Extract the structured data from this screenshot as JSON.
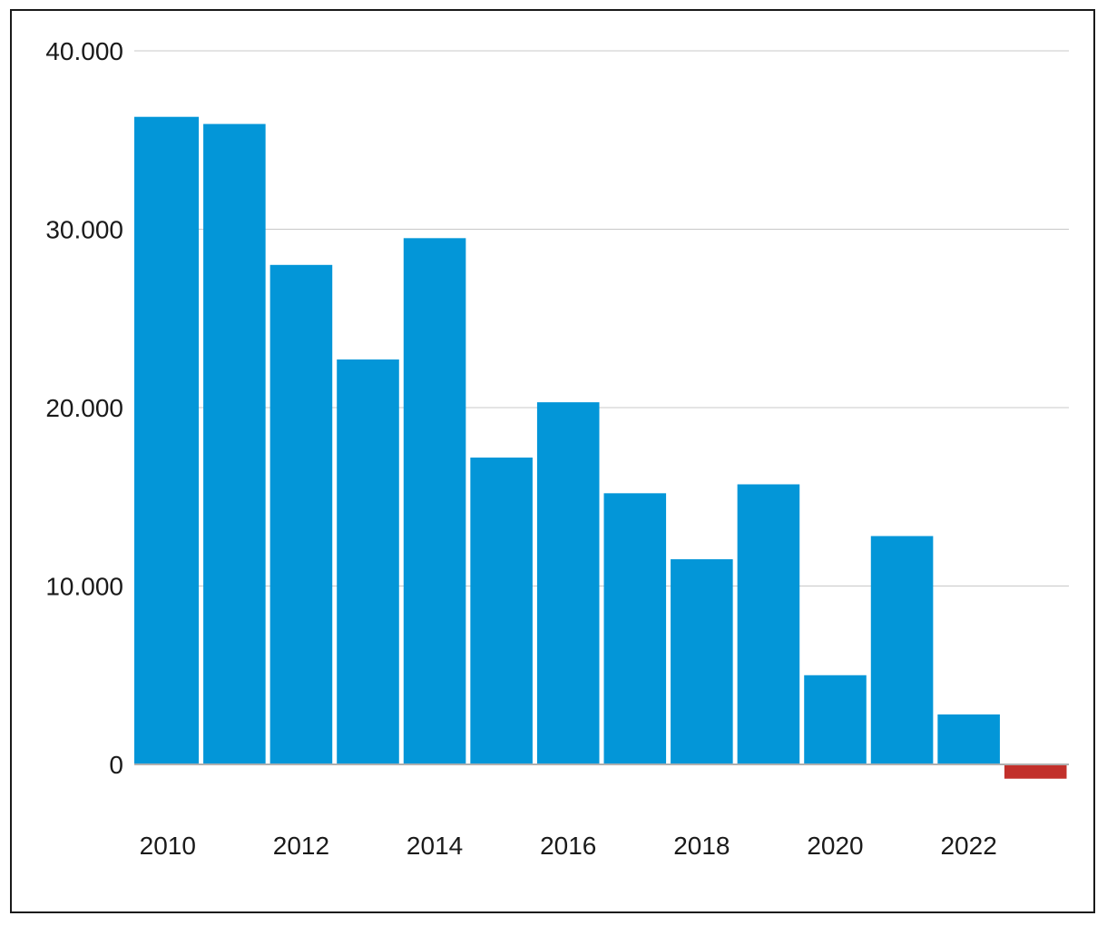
{
  "chart_data": {
    "type": "bar",
    "categories": [
      "2010",
      "2011",
      "2012",
      "2013",
      "2014",
      "2015",
      "2016",
      "2017",
      "2018",
      "2019",
      "2020",
      "2021",
      "2022",
      "2023"
    ],
    "values": [
      36300,
      35900,
      28000,
      22700,
      29500,
      17200,
      20300,
      15200,
      11500,
      15700,
      5000,
      12800,
      2800,
      -800
    ],
    "x_tick_labels": [
      "2010",
      "2012",
      "2014",
      "2016",
      "2018",
      "2020",
      "2022"
    ],
    "y_ticks": [
      0,
      10000,
      20000,
      30000,
      40000
    ],
    "y_tick_labels": [
      "0",
      "10.000",
      "20.000",
      "30.000",
      "40.000"
    ],
    "ylim": [
      -2000,
      40000
    ],
    "grid": true,
    "title": "",
    "xlabel": "",
    "ylabel": "",
    "colors": {
      "positive": "#0396d8",
      "negative": "#c2302b",
      "grid": "#c8c8c8",
      "baseline": "#b0b0b0"
    }
  }
}
